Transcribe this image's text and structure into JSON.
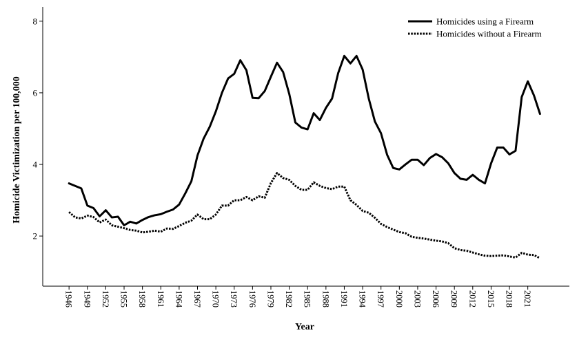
{
  "chart_data": {
    "type": "line",
    "xlabel": "Year",
    "ylabel": "Homicide Victimization per 100,000",
    "x": [
      1946,
      1947,
      1948,
      1949,
      1950,
      1951,
      1952,
      1953,
      1954,
      1955,
      1956,
      1957,
      1958,
      1959,
      1960,
      1961,
      1962,
      1963,
      1964,
      1965,
      1966,
      1967,
      1968,
      1969,
      1970,
      1971,
      1972,
      1973,
      1974,
      1975,
      1976,
      1977,
      1978,
      1979,
      1980,
      1981,
      1982,
      1983,
      1984,
      1985,
      1986,
      1987,
      1988,
      1989,
      1990,
      1991,
      1992,
      1993,
      1994,
      1995,
      1996,
      1997,
      1998,
      1999,
      2000,
      2001,
      2002,
      2003,
      2004,
      2005,
      2006,
      2007,
      2008,
      2009,
      2010,
      2011,
      2012,
      2013,
      2014,
      2015,
      2016,
      2017,
      2018,
      2019,
      2020,
      2021,
      2022,
      2023
    ],
    "xticks": [
      1946,
      1949,
      1952,
      1955,
      1958,
      1961,
      1964,
      1967,
      1970,
      1973,
      1976,
      1979,
      1982,
      1985,
      1988,
      1991,
      1994,
      1997,
      2000,
      2003,
      2006,
      2009,
      2012,
      2015,
      2018,
      2021
    ],
    "xtick_labels": [
      "1946",
      "1949",
      "1952",
      "1955",
      "1958",
      "1961",
      "1964",
      "1967",
      "1970",
      "1973",
      "1976",
      "1979",
      "1982",
      "1985",
      "1988",
      "1991",
      "1994",
      "1997",
      "2000",
      "2003",
      "2006",
      "2009",
      "2012",
      "2015",
      "2018",
      "2021"
    ],
    "yticks": [
      2,
      4,
      6,
      8
    ],
    "ytick_labels": [
      "2",
      "4",
      "6",
      "8"
    ],
    "ylim": [
      0.6,
      8.4
    ],
    "xlim": [
      1941.7,
      2027.8
    ],
    "legend": "top-right",
    "series": [
      {
        "name": "Homicides using a Firearm",
        "style": "solid",
        "color": "#000000",
        "values": [
          3.47,
          3.4,
          3.33,
          2.85,
          2.78,
          2.55,
          2.72,
          2.52,
          2.54,
          2.3,
          2.4,
          2.35,
          2.45,
          2.53,
          2.58,
          2.61,
          2.68,
          2.74,
          2.88,
          3.19,
          3.53,
          4.25,
          4.72,
          5.05,
          5.48,
          6.0,
          6.4,
          6.53,
          6.91,
          6.63,
          5.86,
          5.85,
          6.05,
          6.45,
          6.84,
          6.58,
          5.97,
          5.17,
          5.03,
          4.98,
          5.43,
          5.24,
          5.58,
          5.84,
          6.55,
          7.03,
          6.82,
          7.03,
          6.65,
          5.84,
          5.2,
          4.87,
          4.27,
          3.9,
          3.86,
          4.0,
          4.13,
          4.13,
          3.98,
          4.18,
          4.29,
          4.2,
          4.03,
          3.76,
          3.6,
          3.57,
          3.71,
          3.57,
          3.47,
          4.03,
          4.47,
          4.47,
          4.28,
          4.38,
          5.88,
          6.32,
          5.93,
          5.41
        ]
      },
      {
        "name": "Homicides without a Firearm",
        "style": "dotted",
        "color": "#000000",
        "values": [
          2.67,
          2.52,
          2.49,
          2.57,
          2.53,
          2.38,
          2.46,
          2.3,
          2.26,
          2.22,
          2.17,
          2.15,
          2.1,
          2.12,
          2.15,
          2.12,
          2.21,
          2.2,
          2.28,
          2.37,
          2.43,
          2.6,
          2.47,
          2.47,
          2.6,
          2.85,
          2.85,
          3.0,
          3.0,
          3.09,
          3.0,
          3.11,
          3.07,
          3.48,
          3.76,
          3.62,
          3.57,
          3.4,
          3.29,
          3.29,
          3.5,
          3.4,
          3.34,
          3.31,
          3.38,
          3.38,
          3.0,
          2.87,
          2.7,
          2.65,
          2.51,
          2.34,
          2.25,
          2.18,
          2.11,
          2.08,
          1.98,
          1.95,
          1.93,
          1.9,
          1.87,
          1.85,
          1.8,
          1.66,
          1.61,
          1.59,
          1.54,
          1.49,
          1.45,
          1.44,
          1.45,
          1.46,
          1.43,
          1.4,
          1.53,
          1.48,
          1.47,
          1.38
        ]
      }
    ]
  }
}
